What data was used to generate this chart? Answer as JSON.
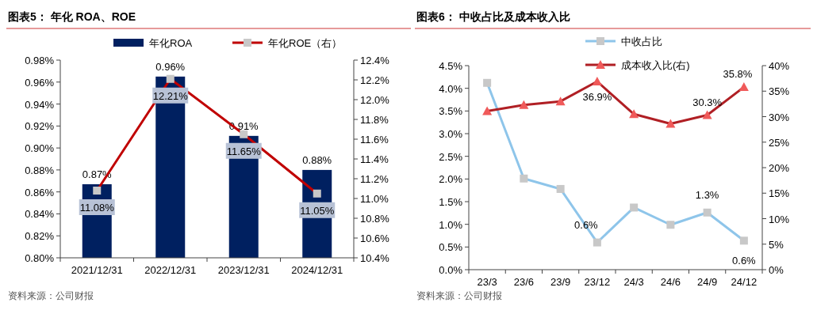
{
  "chart_data": [
    {
      "type": "bar",
      "title": "图表5： 年化 ROA、ROE",
      "categories": [
        "2021/12/31",
        "2022/12/31",
        "2023/12/31",
        "2024/12/31"
      ],
      "series": [
        {
          "name": "年化ROA",
          "color": "#002060",
          "values": [
            0.867,
            0.965,
            0.911,
            0.88
          ],
          "value_labels": [
            "0.87%",
            "0.96%",
            "0.91%",
            "0.88%"
          ]
        },
        {
          "name": "年化ROE（右）",
          "type": "line",
          "axis": "y2",
          "color": "#c00000",
          "marker": "square",
          "values": [
            11.08,
            12.21,
            11.65,
            11.05
          ],
          "value_labels": [
            "11.08%",
            "12.21%",
            "11.65%",
            "11.05%"
          ]
        }
      ],
      "ylim": [
        0.8,
        0.98
      ],
      "yticks": [
        {
          "value": 0.8,
          "label": "0.80%"
        },
        {
          "value": 0.82,
          "label": "0.82%"
        },
        {
          "value": 0.84,
          "label": "0.84%"
        },
        {
          "value": 0.86,
          "label": "0.86%"
        },
        {
          "value": 0.88,
          "label": "0.88%"
        },
        {
          "value": 0.9,
          "label": "0.90%"
        },
        {
          "value": 0.92,
          "label": "0.92%"
        },
        {
          "value": 0.94,
          "label": "0.94%"
        },
        {
          "value": 0.96,
          "label": "0.96%"
        },
        {
          "value": 0.98,
          "label": "0.98%"
        }
      ],
      "y2lim": [
        10.4,
        12.4
      ],
      "y2ticks": [
        {
          "value": 10.4,
          "label": "10.4%"
        },
        {
          "value": 10.6,
          "label": "10.6%"
        },
        {
          "value": 10.8,
          "label": "10.8%"
        },
        {
          "value": 11.0,
          "label": "11.0%"
        },
        {
          "value": 11.2,
          "label": "11.2%"
        },
        {
          "value": 11.4,
          "label": "11.4%"
        },
        {
          "value": 11.6,
          "label": "11.6%"
        },
        {
          "value": 11.8,
          "label": "11.8%"
        },
        {
          "value": 12.0,
          "label": "12.0%"
        },
        {
          "value": 12.2,
          "label": "12.2%"
        },
        {
          "value": 12.4,
          "label": "12.4%"
        }
      ],
      "legend": "top",
      "grid": false,
      "annotations": [
        "资料来源：公司财报"
      ]
    },
    {
      "type": "line",
      "title": "图表6： 中收占比及成本收入比",
      "categories": [
        "23/3",
        "23/6",
        "23/9",
        "23/12",
        "24/3",
        "24/6",
        "24/9",
        "24/12"
      ],
      "series": [
        {
          "name": "中收占比",
          "color": "#8ec5ea",
          "marker": "square",
          "values": [
            4.12,
            2.01,
            1.78,
            0.6,
            1.37,
            0.99,
            1.26,
            0.64
          ],
          "value_labels": [
            null,
            null,
            null,
            "0.6%",
            null,
            null,
            "1.3%",
            "0.6%"
          ]
        },
        {
          "name": "成本收入比(右)",
          "axis": "y2",
          "color": "#b01f24",
          "marker": "triangle",
          "values": [
            31.1,
            32.3,
            33.0,
            36.9,
            30.5,
            28.6,
            30.3,
            35.8
          ],
          "value_labels": [
            null,
            null,
            null,
            "36.9%",
            null,
            null,
            "30.3%",
            "35.8%"
          ]
        }
      ],
      "ylim": [
        0,
        4.5
      ],
      "yticks": [
        {
          "value": 0,
          "label": "0.0%"
        },
        {
          "value": 0.5,
          "label": "0.5%"
        },
        {
          "value": 1,
          "label": "1.0%"
        },
        {
          "value": 1.5,
          "label": "1.5%"
        },
        {
          "value": 2,
          "label": "2.0%"
        },
        {
          "value": 2.5,
          "label": "2.5%"
        },
        {
          "value": 3,
          "label": "3.0%"
        },
        {
          "value": 3.5,
          "label": "3.5%"
        },
        {
          "value": 4,
          "label": "4.0%"
        },
        {
          "value": 4.5,
          "label": "4.5%"
        }
      ],
      "y2lim": [
        0,
        40
      ],
      "y2ticks": [
        {
          "value": 0,
          "label": "0%"
        },
        {
          "value": 5,
          "label": "5%"
        },
        {
          "value": 10,
          "label": "10%"
        },
        {
          "value": 15,
          "label": "15%"
        },
        {
          "value": 20,
          "label": "20%"
        },
        {
          "value": 25,
          "label": "25%"
        },
        {
          "value": 30,
          "label": "30%"
        },
        {
          "value": 35,
          "label": "35%"
        },
        {
          "value": 40,
          "label": "40%"
        }
      ],
      "legend": "top",
      "grid": false,
      "annotations": [
        "资料来源：公司财报"
      ]
    }
  ]
}
